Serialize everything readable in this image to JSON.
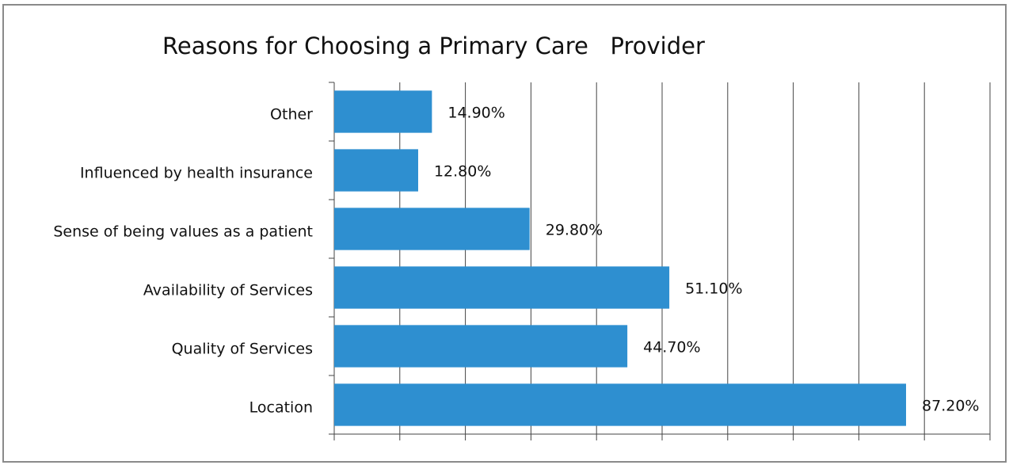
{
  "chart_data": {
    "type": "barh",
    "title": "Reasons for Choosing a Primary Care   Provider",
    "categories": [
      "Other",
      "Influenced by health insurance",
      "Sense of being values as a patient",
      "Availability of Services",
      "Quality of Services",
      "Location"
    ],
    "values": [
      14.9,
      12.8,
      29.8,
      51.1,
      44.7,
      87.2
    ],
    "value_labels": [
      "14.90%",
      "12.80%",
      "29.80%",
      "51.10%",
      "44.70%",
      "87.20%"
    ],
    "color": "#2e8fd0",
    "xlim": [
      0,
      100
    ],
    "xticks": [
      0,
      10,
      20,
      30,
      40,
      50,
      60,
      70,
      80,
      90,
      100
    ],
    "grid": true
  }
}
